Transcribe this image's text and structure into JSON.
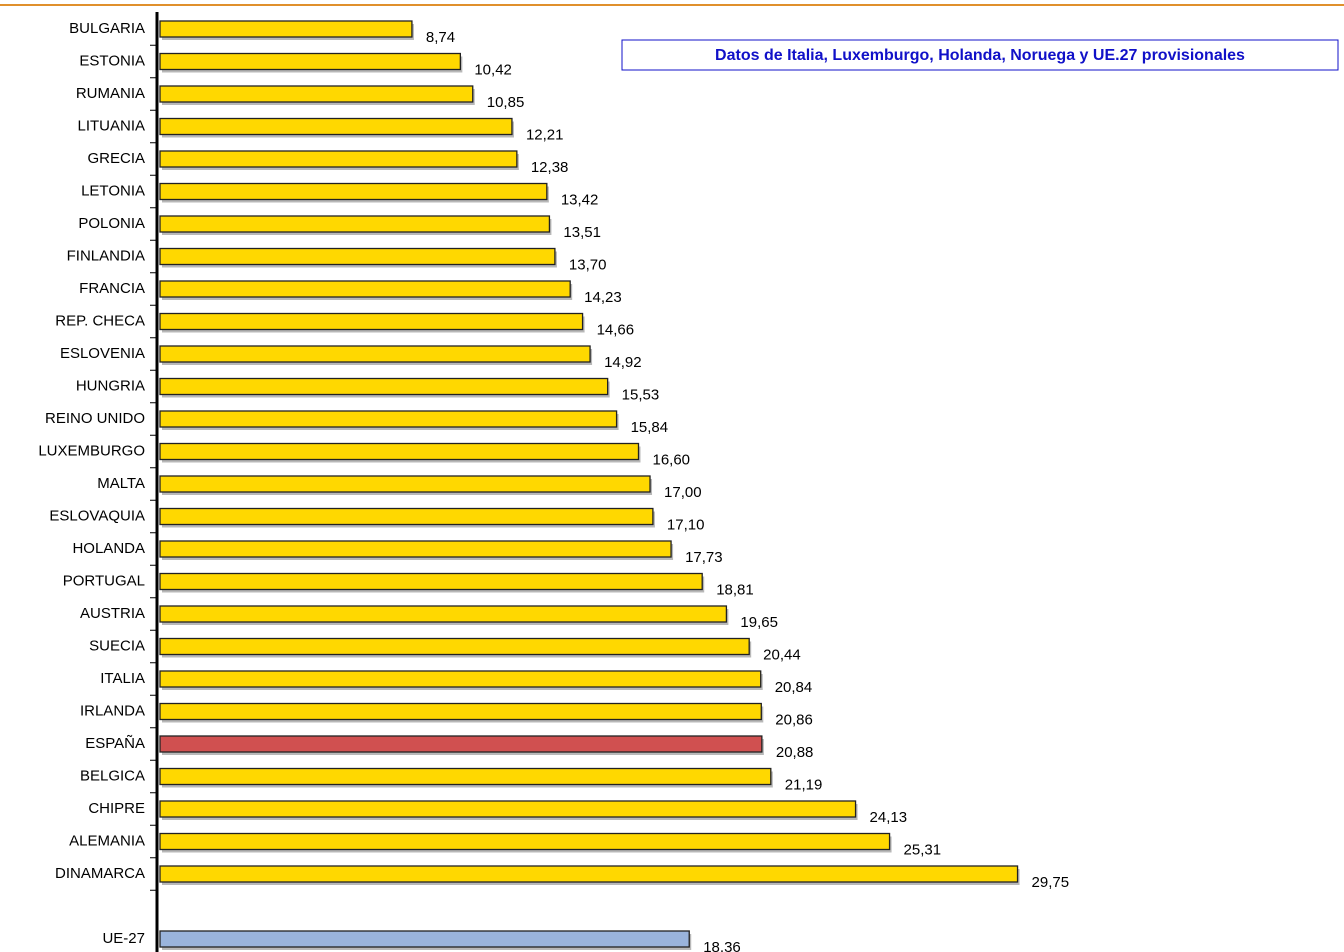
{
  "chart_data": {
    "type": "bar",
    "orientation": "horizontal",
    "annotation": "Datos de Italia, Luxemburgo, Holanda, Noruega y UE.27 provisionales",
    "categories": [
      "BULGARIA",
      "ESTONIA",
      "RUMANIA",
      "LITUANIA",
      "GRECIA",
      "LETONIA",
      "POLONIA",
      "FINLANDIA",
      "FRANCIA",
      "REP. CHECA",
      "ESLOVENIA",
      "HUNGRIA",
      "REINO UNIDO",
      "LUXEMBURGO",
      "MALTA",
      "ESLOVAQUIA",
      "HOLANDA",
      "PORTUGAL",
      "AUSTRIA",
      "SUECIA",
      "ITALIA",
      "IRLANDA",
      "ESPAÑA",
      "BELGICA",
      "CHIPRE",
      "ALEMANIA",
      "DINAMARCA",
      null,
      "UE-27"
    ],
    "values": [
      8.74,
      10.42,
      10.85,
      12.21,
      12.38,
      13.42,
      13.51,
      13.7,
      14.23,
      14.66,
      14.92,
      15.53,
      15.84,
      16.6,
      17.0,
      17.1,
      17.73,
      18.81,
      19.65,
      20.44,
      20.84,
      20.86,
      20.88,
      21.19,
      24.13,
      25.31,
      29.75,
      null,
      18.36
    ],
    "value_labels": [
      "8,74",
      "10,42",
      "10,85",
      "12,21",
      "12,38",
      "13,42",
      "13,51",
      "13,70",
      "14,23",
      "14,66",
      "14,92",
      "15,53",
      "15,84",
      "16,60",
      "17,00",
      "17,10",
      "17,73",
      "18,81",
      "19,65",
      "20,44",
      "20,84",
      "20,86",
      "20,88",
      "21,19",
      "24,13",
      "25,31",
      "29,75",
      null,
      "18,36"
    ],
    "colors": [
      "#ffd800",
      "#ffd800",
      "#ffd800",
      "#ffd800",
      "#ffd800",
      "#ffd800",
      "#ffd800",
      "#ffd800",
      "#ffd800",
      "#ffd800",
      "#ffd800",
      "#ffd800",
      "#ffd800",
      "#ffd800",
      "#ffd800",
      "#ffd800",
      "#ffd800",
      "#ffd800",
      "#ffd800",
      "#ffd800",
      "#ffd800",
      "#ffd800",
      "#d05050",
      "#ffd800",
      "#ffd800",
      "#ffd800",
      "#ffd800",
      null,
      "#9ab4dc"
    ],
    "xlim": [
      0,
      40
    ]
  }
}
